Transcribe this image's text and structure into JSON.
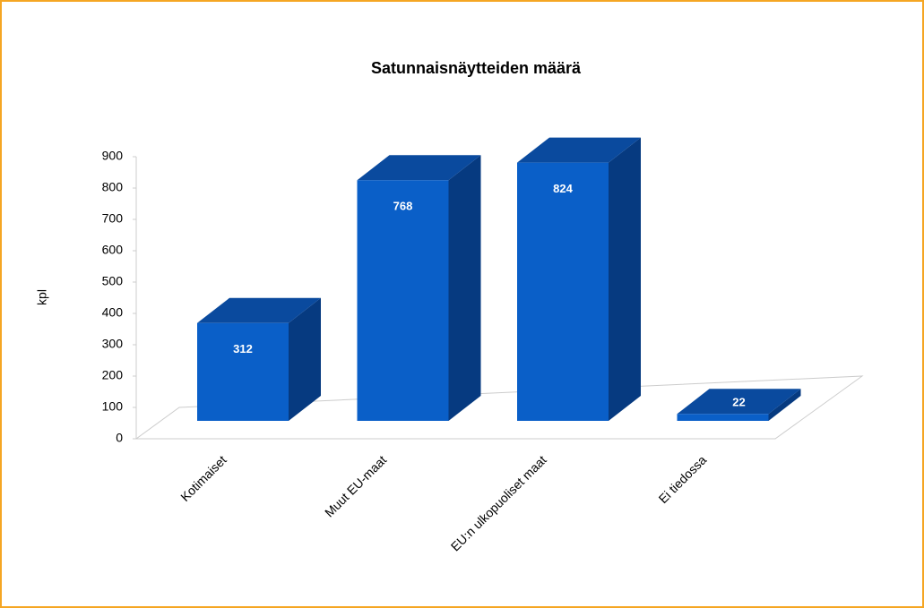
{
  "chart_data": {
    "type": "bar3d",
    "title": "Satunnaisnäytteiden määrä",
    "y_label": "kpl",
    "categories": [
      "Kotimaiset",
      "Muut EU-maat",
      "EU:n ulkopuoliset maat",
      "Ei tiedossa"
    ],
    "values": [
      312,
      768,
      824,
      22
    ],
    "color": "#0a5fc8",
    "ylim": [
      0,
      900
    ],
    "yticks": [
      0,
      100,
      200,
      300,
      400,
      500,
      600,
      700,
      800,
      900
    ]
  }
}
